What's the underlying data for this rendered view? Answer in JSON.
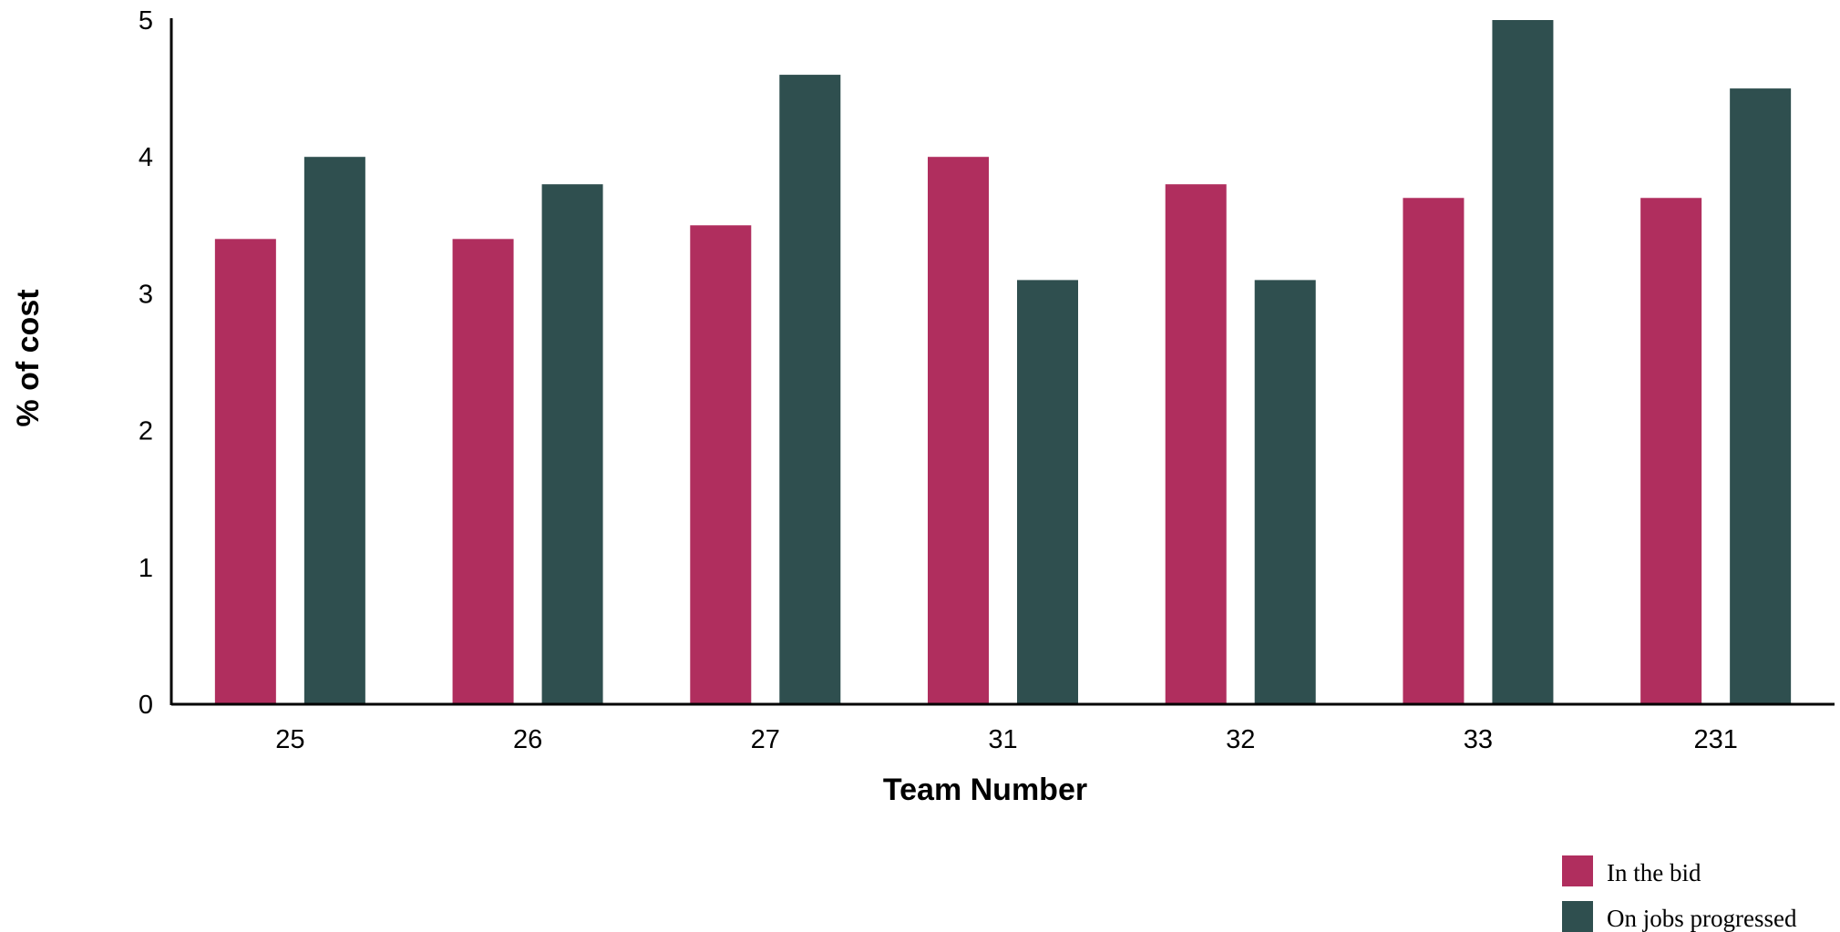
{
  "chart_data": {
    "type": "bar",
    "categories": [
      "25",
      "26",
      "27",
      "31",
      "32",
      "33",
      "231"
    ],
    "series": [
      {
        "name": "In the bid",
        "values": [
          3.4,
          3.4,
          3.5,
          4.0,
          3.8,
          3.7,
          3.7
        ],
        "color": "#b02e5e"
      },
      {
        "name": "On jobs progressed",
        "values": [
          4.0,
          3.8,
          4.6,
          3.1,
          3.1,
          5.0,
          4.5
        ],
        "color": "#2f4f4f"
      }
    ],
    "title": "",
    "xlabel": "Team Number",
    "ylabel": "% of cost",
    "ylim": [
      0,
      5
    ],
    "yticks": [
      "0",
      "1",
      "2",
      "3",
      "4",
      "5"
    ],
    "grid": false,
    "legend_position": "bottom-right"
  }
}
